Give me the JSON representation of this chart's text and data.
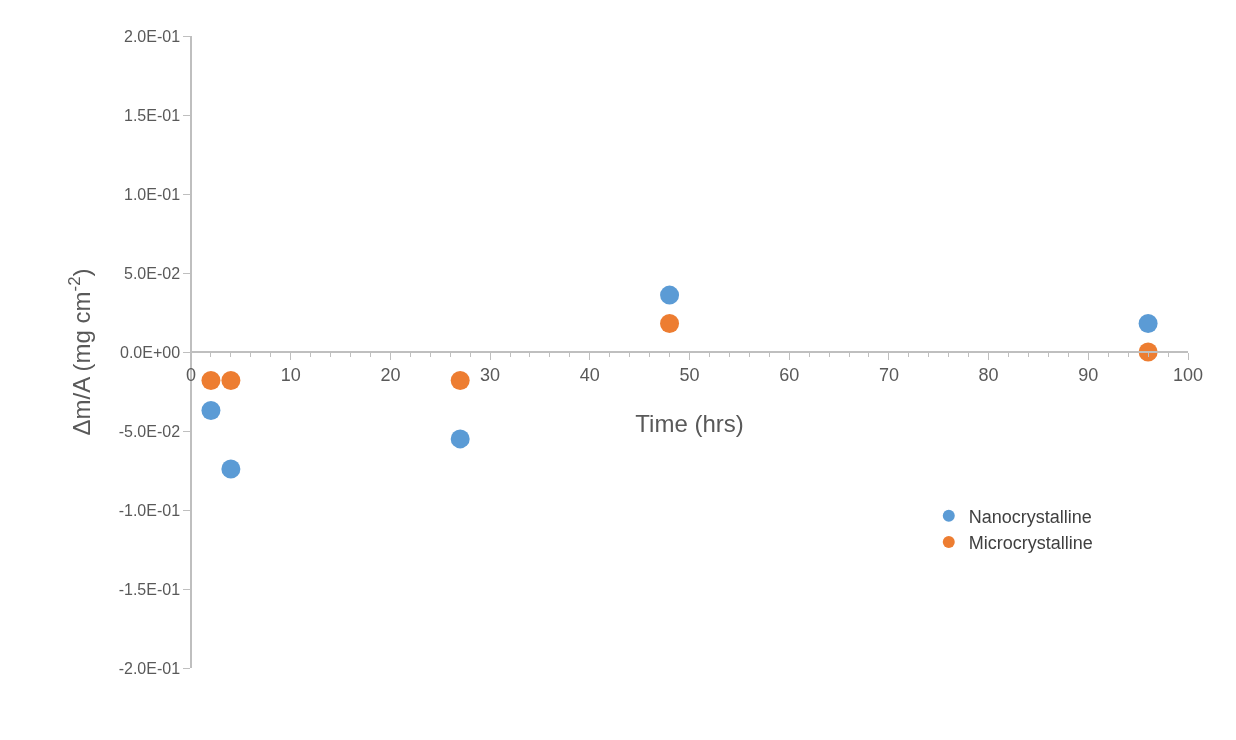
{
  "chart_data": {
    "type": "scatter",
    "xlabel": "Time (hrs)",
    "ylabel": "Δm/A (mg cm$^{-2}$)",
    "series": [
      {
        "name": "Nanocrystalline",
        "color": "#5b9bd5",
        "x": [
          2,
          4,
          27,
          48,
          96
        ],
        "values": [
          -0.037,
          -0.074,
          -0.055,
          0.036,
          0.018
        ]
      },
      {
        "name": "Microcrystalline",
        "color": "#ed7d31",
        "x": [
          2,
          4,
          27,
          48,
          96
        ],
        "values": [
          -0.018,
          -0.018,
          -0.018,
          0.018,
          0
        ]
      }
    ],
    "xlim": [
      0,
      100
    ],
    "xticks": [
      0,
      10,
      20,
      30,
      40,
      50,
      60,
      70,
      80,
      90,
      100
    ],
    "ylim": [
      -0.2,
      0.2
    ],
    "yticks": [
      {
        "value": -0.2,
        "label": "-2.0E-01"
      },
      {
        "value": -0.15,
        "label": "-1.5E-01"
      },
      {
        "value": -0.1,
        "label": "-1.0E-01"
      },
      {
        "value": -0.05,
        "label": "-5.0E-02"
      },
      {
        "value": 0,
        "label": "0.0E+00"
      },
      {
        "value": 0.05,
        "label": "5.0E-02"
      },
      {
        "value": 0.1,
        "label": "1.0E-01"
      },
      {
        "value": 0.15,
        "label": "1.5E-01"
      },
      {
        "value": 0.2,
        "label": "2.0E-01"
      }
    ],
    "grid": false,
    "legend": "bottom right",
    "marker": "circle"
  }
}
